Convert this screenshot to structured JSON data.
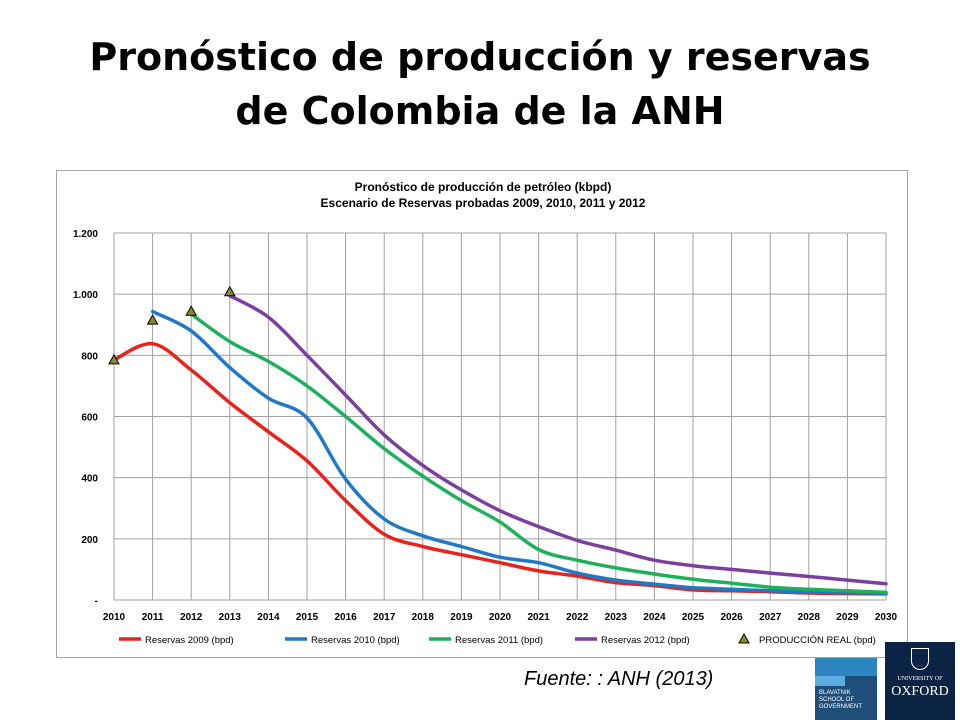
{
  "slide": {
    "title_line1": "Pronóstico de producción y reservas",
    "title_line2": "de Colombia de la ANH",
    "source": "Fuente: : ANH (2013)"
  },
  "logos": {
    "bsg_text": "BLAVATNIK SCHOOL OF GOVERNMENT",
    "oxford_small": "UNIVERSITY OF",
    "oxford_big": "OXFORD"
  },
  "chart_data": {
    "type": "line",
    "title": "Pronóstico de producción de petróleo (kbpd)",
    "subtitle": "Escenario de Reservas probadas 2009, 2010, 2011 y 2012",
    "x": [
      2010,
      2011,
      2012,
      2013,
      2014,
      2015,
      2016,
      2017,
      2018,
      2019,
      2020,
      2021,
      2022,
      2023,
      2024,
      2025,
      2026,
      2027,
      2028,
      2029,
      2030
    ],
    "ylim": [
      0,
      1200
    ],
    "yticks": [
      0,
      200,
      400,
      600,
      800,
      1000,
      1200
    ],
    "ytick_labels": [
      "-",
      "200",
      "400",
      "600",
      "800",
      "1.000",
      "1.200"
    ],
    "grid": true,
    "legend_position": "bottom",
    "series": [
      {
        "name": "Reservas 2009 (bpd)",
        "color": "#e8221c",
        "kind": "line",
        "values": [
          785,
          838,
          752,
          645,
          550,
          455,
          325,
          215,
          175,
          148,
          122,
          95,
          78,
          57,
          47,
          33,
          30,
          27,
          23,
          21,
          20
        ]
      },
      {
        "name": "Reservas 2010 (bpd)",
        "color": "#1f78c8",
        "kind": "line",
        "values": [
          null,
          943,
          880,
          760,
          660,
          595,
          395,
          265,
          210,
          175,
          140,
          122,
          88,
          65,
          52,
          40,
          35,
          30,
          27,
          24,
          22
        ]
      },
      {
        "name": "Reservas 2011 (bpd)",
        "color": "#1eb05a",
        "kind": "line",
        "values": [
          null,
          null,
          935,
          845,
          780,
          700,
          600,
          495,
          405,
          325,
          255,
          165,
          130,
          105,
          85,
          68,
          55,
          42,
          35,
          30,
          25
        ]
      },
      {
        "name": "Reservas 2012 (bpd)",
        "color": "#7b3fa0",
        "kind": "line",
        "values": [
          null,
          null,
          null,
          995,
          925,
          800,
          670,
          540,
          440,
          360,
          292,
          240,
          195,
          163,
          130,
          112,
          100,
          88,
          77,
          65,
          53
        ]
      },
      {
        "name": "PRODUCCIÓN REAL (bpd)",
        "color": "#2b2b2b",
        "kind": "marker",
        "values": [
          785,
          915,
          944,
          1008,
          null,
          null,
          null,
          null,
          null,
          null,
          null,
          null,
          null,
          null,
          null,
          null,
          null,
          null,
          null,
          null,
          null
        ]
      }
    ]
  }
}
